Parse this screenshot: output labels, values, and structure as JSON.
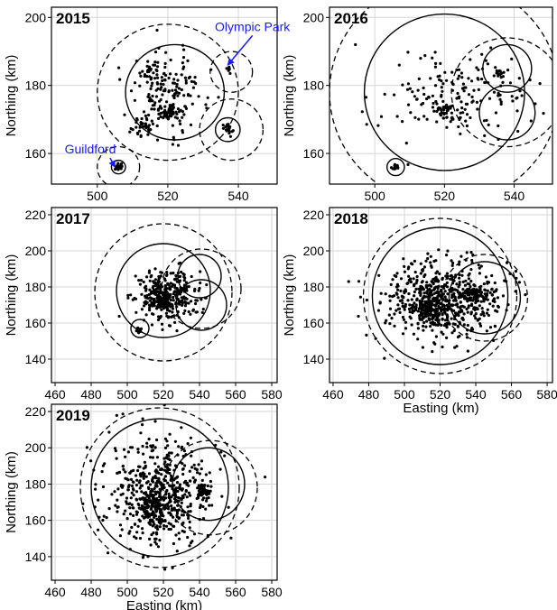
{
  "chart_data": [
    {
      "type": "scatter",
      "year_label": "2015",
      "xlim": [
        487,
        551
      ],
      "ylim": [
        151,
        203
      ],
      "xticks": [
        500,
        520,
        540
      ],
      "yticks": [
        160,
        180,
        200
      ],
      "ylabel": "Northing (km)",
      "xlabel": "",
      "grid": true,
      "clusters": [
        {
          "x": 520,
          "y": 178,
          "rx": 10,
          "ry": 11,
          "n": 170
        },
        {
          "x": 520,
          "y": 172,
          "rx": 2,
          "ry": 2,
          "n": 40
        },
        {
          "x": 513,
          "y": 168,
          "rx": 3,
          "ry": 3,
          "n": 30
        },
        {
          "x": 515,
          "y": 184,
          "rx": 3,
          "ry": 2,
          "n": 20
        },
        {
          "x": 537,
          "y": 167,
          "rx": 1.5,
          "ry": 1.5,
          "n": 22
        },
        {
          "x": 506,
          "y": 156,
          "rx": 1,
          "ry": 1,
          "n": 18
        },
        {
          "x": 537,
          "y": 185,
          "rx": 1,
          "ry": 1,
          "n": 5
        }
      ],
      "solid_boundary": [
        {
          "x": 522,
          "y": 178,
          "r": 14
        },
        {
          "x": 537,
          "y": 167,
          "r": 3.5
        },
        {
          "x": 506,
          "y": 156,
          "r": 2
        }
      ],
      "dashed_boundary": [
        {
          "x": 520,
          "y": 178,
          "r": 20
        },
        {
          "x": 538,
          "y": 184,
          "r": 6
        },
        {
          "x": 538,
          "y": 167,
          "r": 9
        },
        {
          "x": 506,
          "y": 156,
          "r": 6
        }
      ],
      "annotations": [
        {
          "text": "Olympic Park",
          "x": 544,
          "y": 196,
          "arrow_to": [
            537,
            186
          ]
        },
        {
          "text": "Guildford",
          "x": 498,
          "y": 160,
          "arrow_to": [
            505,
            156
          ]
        }
      ]
    },
    {
      "type": "scatter",
      "year_label": "2016",
      "xlim": [
        487,
        551
      ],
      "ylim": [
        151,
        203
      ],
      "xticks": [
        500,
        520,
        540
      ],
      "yticks": [
        160,
        180,
        200
      ],
      "ylabel": "Northing (km)",
      "xlabel": "",
      "grid": true,
      "clusters": [
        {
          "x": 522,
          "y": 176,
          "rx": 18,
          "ry": 11,
          "n": 180
        },
        {
          "x": 520,
          "y": 173,
          "rx": 2,
          "ry": 2,
          "n": 30
        },
        {
          "x": 536,
          "y": 184,
          "rx": 1.5,
          "ry": 2,
          "n": 14
        },
        {
          "x": 506,
          "y": 156,
          "rx": 1,
          "ry": 1,
          "n": 16
        }
      ],
      "solid_boundary": [
        {
          "x": 520,
          "y": 178,
          "r": 23
        },
        {
          "x": 538,
          "y": 185,
          "r": 7
        },
        {
          "x": 538,
          "y": 172,
          "r": 8
        },
        {
          "x": 506,
          "y": 156,
          "r": 2.5
        }
      ],
      "dashed_boundary": [
        {
          "x": 520,
          "y": 178,
          "r": 33
        },
        {
          "x": 538,
          "y": 178,
          "r": 16
        }
      ],
      "annotations": []
    },
    {
      "type": "scatter",
      "year_label": "2017",
      "xlim": [
        458,
        583
      ],
      "ylim": [
        127,
        224
      ],
      "xticks": [
        460,
        480,
        500,
        520,
        540,
        560,
        580
      ],
      "yticks": [
        140,
        160,
        180,
        200,
        220
      ],
      "ylabel": "Northing (km)",
      "xlabel": "",
      "grid": true,
      "clusters": [
        {
          "x": 522,
          "y": 175,
          "rx": 16,
          "ry": 13,
          "n": 330
        },
        {
          "x": 520,
          "y": 172,
          "rx": 4,
          "ry": 4,
          "n": 60
        },
        {
          "x": 506,
          "y": 156,
          "rx": 1.5,
          "ry": 1.5,
          "n": 14
        }
      ],
      "solid_boundary": [
        {
          "x": 520,
          "y": 178,
          "r": 26
        },
        {
          "x": 540,
          "y": 186,
          "r": 12
        },
        {
          "x": 541,
          "y": 170,
          "r": 14
        },
        {
          "x": 507,
          "y": 157,
          "r": 5
        }
      ],
      "dashed_boundary": [
        {
          "x": 520,
          "y": 177,
          "r": 38
        },
        {
          "x": 541,
          "y": 179,
          "r": 22
        }
      ],
      "annotations": []
    },
    {
      "type": "scatter",
      "year_label": "2018",
      "xlim": [
        458,
        583
      ],
      "ylim": [
        127,
        224
      ],
      "xticks": [
        460,
        480,
        500,
        520,
        540,
        560,
        580
      ],
      "yticks": [
        140,
        160,
        180,
        200,
        220
      ],
      "ylabel": "Northing (km)",
      "xlabel": "Easting (km)",
      "grid": true,
      "clusters": [
        {
          "x": 522,
          "y": 174,
          "rx": 30,
          "ry": 19,
          "n": 600
        },
        {
          "x": 515,
          "y": 168,
          "rx": 8,
          "ry": 8,
          "n": 110
        },
        {
          "x": 540,
          "y": 176,
          "rx": 8,
          "ry": 4,
          "n": 60
        }
      ],
      "solid_boundary": [
        {
          "x": 520,
          "y": 175,
          "r": 38
        },
        {
          "x": 545,
          "y": 174,
          "r": 20
        }
      ],
      "dashed_boundary": [
        {
          "x": 520,
          "y": 175,
          "r": 43
        },
        {
          "x": 545,
          "y": 174,
          "r": 24
        }
      ],
      "annotations": []
    },
    {
      "type": "scatter",
      "year_label": "2019",
      "xlim": [
        458,
        583
      ],
      "ylim": [
        127,
        224
      ],
      "xticks": [
        460,
        480,
        500,
        520,
        540,
        560,
        580
      ],
      "yticks": [
        140,
        160,
        180,
        200,
        220
      ],
      "ylabel": "Northing (km)",
      "xlabel": "Easting (km)",
      "grid": true,
      "clusters": [
        {
          "x": 518,
          "y": 175,
          "rx": 26,
          "ry": 26,
          "n": 560
        },
        {
          "x": 514,
          "y": 166,
          "rx": 7,
          "ry": 8,
          "n": 90
        },
        {
          "x": 542,
          "y": 176,
          "rx": 4,
          "ry": 3,
          "n": 50
        }
      ],
      "solid_boundary": [
        {
          "x": 518,
          "y": 178,
          "r": 38
        },
        {
          "x": 545,
          "y": 180,
          "r": 20
        }
      ],
      "dashed_boundary": [
        {
          "x": 518,
          "y": 178,
          "r": 44
        },
        {
          "x": 546,
          "y": 178,
          "r": 26
        }
      ],
      "annotations": []
    }
  ]
}
